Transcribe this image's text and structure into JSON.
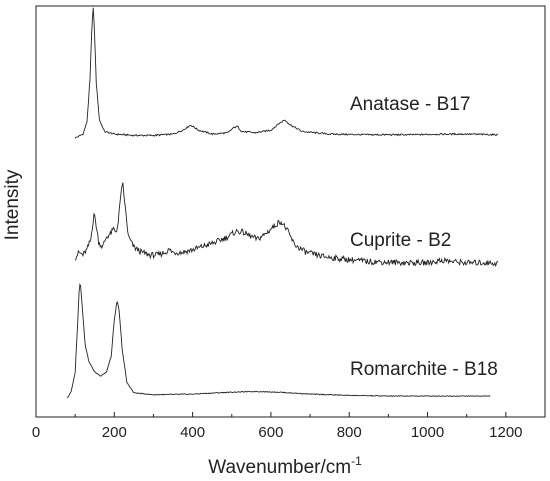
{
  "chart_data": {
    "type": "line",
    "title": "",
    "xlabel": "Wavenumber/cm",
    "xlabel_superscript": "-1",
    "ylabel": "Intensity",
    "xlim": [
      0,
      1300
    ],
    "x_ticks": [
      0,
      200,
      400,
      600,
      800,
      1000,
      1200
    ],
    "y_ticks_shown": false,
    "grid": false,
    "legend": "none",
    "line_color": "#222222",
    "series": [
      {
        "name": "Anatase - B17",
        "offset": 2.0,
        "x_range": [
          100,
          1180
        ],
        "points": [
          [
            100,
            0.0
          ],
          [
            120,
            0.03
          ],
          [
            130,
            0.12
          ],
          [
            138,
            0.45
          ],
          [
            143,
            0.88
          ],
          [
            146,
            1.0
          ],
          [
            149,
            0.86
          ],
          [
            154,
            0.42
          ],
          [
            162,
            0.14
          ],
          [
            175,
            0.05
          ],
          [
            200,
            0.03
          ],
          [
            250,
            0.02
          ],
          [
            300,
            0.02
          ],
          [
            350,
            0.03
          ],
          [
            375,
            0.06
          ],
          [
            395,
            0.1
          ],
          [
            415,
            0.06
          ],
          [
            450,
            0.03
          ],
          [
            490,
            0.04
          ],
          [
            505,
            0.08
          ],
          [
            515,
            0.09
          ],
          [
            525,
            0.05
          ],
          [
            560,
            0.04
          ],
          [
            600,
            0.06
          ],
          [
            620,
            0.11
          ],
          [
            635,
            0.14
          ],
          [
            650,
            0.1
          ],
          [
            680,
            0.05
          ],
          [
            750,
            0.03
          ],
          [
            850,
            0.025
          ],
          [
            950,
            0.025
          ],
          [
            1050,
            0.03
          ],
          [
            1100,
            0.03
          ],
          [
            1180,
            0.025
          ]
        ]
      },
      {
        "name": "Cuprite - B2",
        "offset": 1.0,
        "x_range": [
          100,
          1180
        ],
        "points": [
          [
            100,
            0.08
          ],
          [
            110,
            0.12
          ],
          [
            120,
            0.1
          ],
          [
            130,
            0.14
          ],
          [
            140,
            0.22
          ],
          [
            148,
            0.42
          ],
          [
            152,
            0.36
          ],
          [
            160,
            0.2
          ],
          [
            170,
            0.16
          ],
          [
            180,
            0.24
          ],
          [
            190,
            0.26
          ],
          [
            198,
            0.3
          ],
          [
            204,
            0.28
          ],
          [
            210,
            0.34
          ],
          [
            216,
            0.56
          ],
          [
            222,
            0.64
          ],
          [
            228,
            0.46
          ],
          [
            236,
            0.24
          ],
          [
            250,
            0.16
          ],
          [
            270,
            0.12
          ],
          [
            290,
            0.1
          ],
          [
            310,
            0.1
          ],
          [
            330,
            0.12
          ],
          [
            340,
            0.14
          ],
          [
            350,
            0.12
          ],
          [
            370,
            0.12
          ],
          [
            400,
            0.14
          ],
          [
            430,
            0.17
          ],
          [
            460,
            0.2
          ],
          [
            490,
            0.24
          ],
          [
            510,
            0.28
          ],
          [
            525,
            0.28
          ],
          [
            545,
            0.25
          ],
          [
            565,
            0.22
          ],
          [
            585,
            0.26
          ],
          [
            600,
            0.3
          ],
          [
            615,
            0.34
          ],
          [
            625,
            0.36
          ],
          [
            640,
            0.3
          ],
          [
            660,
            0.18
          ],
          [
            690,
            0.12
          ],
          [
            730,
            0.09
          ],
          [
            780,
            0.07
          ],
          [
            850,
            0.05
          ],
          [
            950,
            0.04
          ],
          [
            1000,
            0.04
          ],
          [
            1040,
            0.06
          ],
          [
            1060,
            0.05
          ],
          [
            1100,
            0.04
          ],
          [
            1150,
            0.04
          ],
          [
            1180,
            0.035
          ]
        ]
      },
      {
        "name": "Romarchite - B18",
        "offset": 0.0,
        "x_range": [
          80,
          1160
        ],
        "points": [
          [
            80,
            0.0
          ],
          [
            90,
            0.05
          ],
          [
            100,
            0.2
          ],
          [
            106,
            0.55
          ],
          [
            110,
            0.82
          ],
          [
            113,
            0.9
          ],
          [
            117,
            0.75
          ],
          [
            125,
            0.42
          ],
          [
            135,
            0.28
          ],
          [
            150,
            0.2
          ],
          [
            165,
            0.17
          ],
          [
            180,
            0.2
          ],
          [
            192,
            0.32
          ],
          [
            200,
            0.6
          ],
          [
            207,
            0.75
          ],
          [
            212,
            0.68
          ],
          [
            220,
            0.38
          ],
          [
            232,
            0.12
          ],
          [
            250,
            0.04
          ],
          [
            300,
            0.025
          ],
          [
            400,
            0.03
          ],
          [
            500,
            0.045
          ],
          [
            560,
            0.05
          ],
          [
            620,
            0.045
          ],
          [
            700,
            0.03
          ],
          [
            800,
            0.02
          ],
          [
            900,
            0.015
          ],
          [
            1000,
            0.015
          ],
          [
            1100,
            0.015
          ],
          [
            1160,
            0.015
          ]
        ]
      }
    ]
  }
}
